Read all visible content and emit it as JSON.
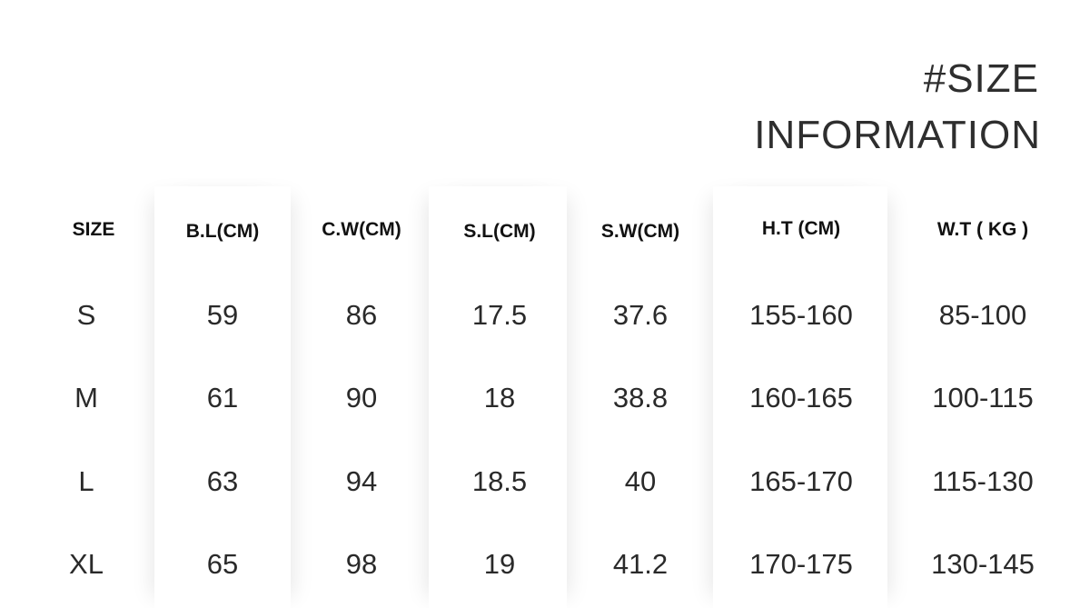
{
  "header": {
    "title_line1": "#SIZE",
    "title_line2": "INFORMATION"
  },
  "table": {
    "columns": [
      "SIZE",
      "B.L(CM)",
      "C.W(CM)",
      "S.L(CM)",
      "S.W(CM)",
      "H.T  (CM)",
      "W.T ( KG )"
    ],
    "rows": [
      [
        "S",
        "59",
        "86",
        "17.5",
        "37.6",
        "155-160",
        "85-100"
      ],
      [
        "M",
        "61",
        "90",
        "18",
        "38.8",
        "160-165",
        "100-115"
      ],
      [
        "L",
        "63",
        "94",
        "18.5",
        "40",
        "165-170",
        "115-130"
      ],
      [
        "XL",
        "65",
        "98",
        "19",
        "41.2",
        "170-175",
        "130-145"
      ]
    ]
  }
}
